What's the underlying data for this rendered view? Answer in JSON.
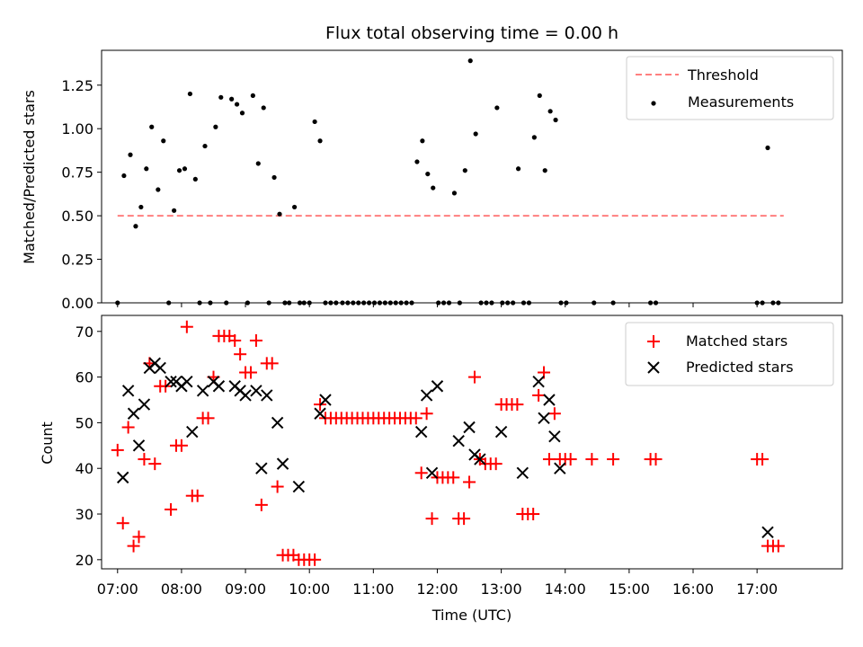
{
  "chart_data": [
    {
      "type": "scatter",
      "title": "Flux total observing time = 0.00 h",
      "ylabel": "Matched/Predicted stars",
      "xlim": [
        "06:45",
        "18:20"
      ],
      "ylim": [
        0,
        1.45
      ],
      "yticks": [
        0.0,
        0.25,
        0.5,
        0.75,
        1.0,
        1.25
      ],
      "ytick_labels": [
        "0.00",
        "0.25",
        "0.50",
        "0.75",
        "1.00",
        "1.25"
      ],
      "x_tick_labels_shown": false,
      "grid": false,
      "legend_position": "top-right",
      "threshold": {
        "name": "Threshold",
        "value": 0.5,
        "x_range": [
          "07:00",
          "17:25"
        ],
        "color": "#ff7f7f",
        "style": "dashed"
      },
      "series": [
        {
          "name": "Measurements",
          "color": "#000000",
          "marker": "dot",
          "points": [
            [
              "07:00",
              0.0
            ],
            [
              "07:06",
              0.73
            ],
            [
              "07:12",
              0.85
            ],
            [
              "07:17",
              0.44
            ],
            [
              "07:22",
              0.55
            ],
            [
              "07:27",
              0.77
            ],
            [
              "07:32",
              1.01
            ],
            [
              "07:38",
              0.65
            ],
            [
              "07:43",
              0.93
            ],
            [
              "07:48",
              0.0
            ],
            [
              "07:53",
              0.53
            ],
            [
              "07:58",
              0.76
            ],
            [
              "08:03",
              0.77
            ],
            [
              "08:08",
              1.2
            ],
            [
              "08:13",
              0.71
            ],
            [
              "08:17",
              0.0
            ],
            [
              "08:22",
              0.9
            ],
            [
              "08:27",
              0.0
            ],
            [
              "08:32",
              1.01
            ],
            [
              "08:37",
              1.18
            ],
            [
              "08:42",
              0.0
            ],
            [
              "08:47",
              1.17
            ],
            [
              "08:52",
              1.14
            ],
            [
              "08:57",
              1.09
            ],
            [
              "09:02",
              0.0
            ],
            [
              "09:07",
              1.19
            ],
            [
              "09:12",
              0.8
            ],
            [
              "09:17",
              1.12
            ],
            [
              "09:22",
              0.0
            ],
            [
              "09:27",
              0.72
            ],
            [
              "09:32",
              0.51
            ],
            [
              "09:37",
              0.0
            ],
            [
              "09:41",
              0.0
            ],
            [
              "09:46",
              0.55
            ],
            [
              "09:51",
              0.0
            ],
            [
              "09:55",
              0.0
            ],
            [
              "10:00",
              0.0
            ],
            [
              "10:05",
              1.04
            ],
            [
              "10:10",
              0.93
            ],
            [
              "10:15",
              0.0
            ],
            [
              "10:20",
              0.0
            ],
            [
              "10:25",
              0.0
            ],
            [
              "10:31",
              0.0
            ],
            [
              "10:36",
              0.0
            ],
            [
              "10:41",
              0.0
            ],
            [
              "10:46",
              0.0
            ],
            [
              "10:51",
              0.0
            ],
            [
              "10:56",
              0.0
            ],
            [
              "11:01",
              0.0
            ],
            [
              "11:06",
              0.0
            ],
            [
              "11:11",
              0.0
            ],
            [
              "11:16",
              0.0
            ],
            [
              "11:21",
              0.0
            ],
            [
              "11:26",
              0.0
            ],
            [
              "11:31",
              0.0
            ],
            [
              "11:36",
              0.0
            ],
            [
              "11:41",
              0.81
            ],
            [
              "11:46",
              0.93
            ],
            [
              "11:51",
              0.74
            ],
            [
              "11:56",
              0.66
            ],
            [
              "12:01",
              0.0
            ],
            [
              "12:06",
              0.0
            ],
            [
              "12:11",
              0.0
            ],
            [
              "12:16",
              0.63
            ],
            [
              "12:21",
              0.0
            ],
            [
              "12:26",
              0.76
            ],
            [
              "12:31",
              1.39
            ],
            [
              "12:36",
              0.97
            ],
            [
              "12:41",
              0.0
            ],
            [
              "12:46",
              0.0
            ],
            [
              "12:51",
              0.0
            ],
            [
              "12:56",
              1.12
            ],
            [
              "13:01",
              0.0
            ],
            [
              "13:06",
              0.0
            ],
            [
              "13:11",
              0.0
            ],
            [
              "13:16",
              0.77
            ],
            [
              "13:21",
              0.0
            ],
            [
              "13:26",
              0.0
            ],
            [
              "13:31",
              0.95
            ],
            [
              "13:36",
              1.19
            ],
            [
              "13:41",
              0.76
            ],
            [
              "13:46",
              1.1
            ],
            [
              "13:51",
              1.05
            ],
            [
              "13:56",
              0.0
            ],
            [
              "14:01",
              0.0
            ],
            [
              "14:27",
              0.0
            ],
            [
              "14:45",
              0.0
            ],
            [
              "15:20",
              0.0
            ],
            [
              "15:25",
              0.0
            ],
            [
              "17:00",
              0.0
            ],
            [
              "17:05",
              0.0
            ],
            [
              "17:10",
              0.89
            ],
            [
              "17:15",
              0.0
            ],
            [
              "17:20",
              0.0
            ]
          ]
        }
      ]
    },
    {
      "type": "scatter",
      "xlabel": "Time (UTC)",
      "ylabel": "Count",
      "xlim": [
        "06:45",
        "18:20"
      ],
      "ylim": [
        18,
        73.5
      ],
      "xticks": [
        "07:00",
        "08:00",
        "09:00",
        "10:00",
        "11:00",
        "12:00",
        "13:00",
        "14:00",
        "15:00",
        "16:00",
        "17:00"
      ],
      "yticks": [
        20,
        30,
        40,
        50,
        60,
        70
      ],
      "grid": false,
      "legend_position": "top-right",
      "series": [
        {
          "name": "Matched stars",
          "color": "#ff0000",
          "marker": "plus",
          "points": [
            [
              "07:00",
              44
            ],
            [
              "07:05",
              28
            ],
            [
              "07:10",
              49
            ],
            [
              "07:15",
              23
            ],
            [
              "07:20",
              25
            ],
            [
              "07:25",
              42
            ],
            [
              "07:30",
              63
            ],
            [
              "07:35",
              41
            ],
            [
              "07:40",
              58
            ],
            [
              "07:45",
              58
            ],
            [
              "07:50",
              31
            ],
            [
              "07:55",
              45
            ],
            [
              "08:00",
              45
            ],
            [
              "08:05",
              71
            ],
            [
              "08:10",
              34
            ],
            [
              "08:15",
              34
            ],
            [
              "08:20",
              51
            ],
            [
              "08:25",
              51
            ],
            [
              "08:30",
              60
            ],
            [
              "08:35",
              69
            ],
            [
              "08:40",
              69
            ],
            [
              "08:45",
              69
            ],
            [
              "08:50",
              68
            ],
            [
              "08:55",
              65
            ],
            [
              "09:00",
              61
            ],
            [
              "09:05",
              61
            ],
            [
              "09:10",
              68
            ],
            [
              "09:15",
              32
            ],
            [
              "09:20",
              63
            ],
            [
              "09:25",
              63
            ],
            [
              "09:30",
              36
            ],
            [
              "09:35",
              21
            ],
            [
              "09:40",
              21
            ],
            [
              "09:45",
              21
            ],
            [
              "09:50",
              20
            ],
            [
              "09:55",
              20
            ],
            [
              "10:00",
              20
            ],
            [
              "10:05",
              20
            ],
            [
              "10:10",
              54
            ],
            [
              "10:15",
              51
            ],
            [
              "10:20",
              51
            ],
            [
              "10:25",
              51
            ],
            [
              "10:30",
              51
            ],
            [
              "10:35",
              51
            ],
            [
              "10:40",
              51
            ],
            [
              "10:45",
              51
            ],
            [
              "10:50",
              51
            ],
            [
              "10:55",
              51
            ],
            [
              "11:00",
              51
            ],
            [
              "11:05",
              51
            ],
            [
              "11:10",
              51
            ],
            [
              "11:15",
              51
            ],
            [
              "11:20",
              51
            ],
            [
              "11:25",
              51
            ],
            [
              "11:30",
              51
            ],
            [
              "11:35",
              51
            ],
            [
              "11:40",
              51
            ],
            [
              "11:45",
              39
            ],
            [
              "11:50",
              52
            ],
            [
              "11:55",
              29
            ],
            [
              "12:00",
              38
            ],
            [
              "12:05",
              38
            ],
            [
              "12:10",
              38
            ],
            [
              "12:15",
              38
            ],
            [
              "12:20",
              29
            ],
            [
              "12:25",
              29
            ],
            [
              "12:30",
              37
            ],
            [
              "12:35",
              60
            ],
            [
              "12:40",
              42
            ],
            [
              "12:45",
              41
            ],
            [
              "12:50",
              41
            ],
            [
              "12:55",
              41
            ],
            [
              "13:00",
              54
            ],
            [
              "13:05",
              54
            ],
            [
              "13:10",
              54
            ],
            [
              "13:15",
              54
            ],
            [
              "13:20",
              30
            ],
            [
              "13:25",
              30
            ],
            [
              "13:30",
              30
            ],
            [
              "13:35",
              56
            ],
            [
              "13:40",
              61
            ],
            [
              "13:45",
              42
            ],
            [
              "13:50",
              52
            ],
            [
              "13:55",
              42
            ],
            [
              "14:00",
              42
            ],
            [
              "14:05",
              42
            ],
            [
              "14:25",
              42
            ],
            [
              "14:45",
              42
            ],
            [
              "15:20",
              42
            ],
            [
              "15:25",
              42
            ],
            [
              "17:00",
              42
            ],
            [
              "17:05",
              42
            ],
            [
              "17:10",
              23
            ],
            [
              "17:15",
              23
            ],
            [
              "17:20",
              23
            ]
          ]
        },
        {
          "name": "Predicted stars",
          "color": "#000000",
          "marker": "x",
          "points": [
            [
              "07:05",
              38
            ],
            [
              "07:10",
              57
            ],
            [
              "07:15",
              52
            ],
            [
              "07:20",
              45
            ],
            [
              "07:25",
              54
            ],
            [
              "07:30",
              62
            ],
            [
              "07:35",
              63
            ],
            [
              "07:40",
              62
            ],
            [
              "07:50",
              59
            ],
            [
              "07:55",
              59
            ],
            [
              "08:00",
              58
            ],
            [
              "08:05",
              59
            ],
            [
              "08:10",
              48
            ],
            [
              "08:20",
              57
            ],
            [
              "08:30",
              59
            ],
            [
              "08:35",
              58
            ],
            [
              "08:50",
              58
            ],
            [
              "08:55",
              57
            ],
            [
              "09:00",
              56
            ],
            [
              "09:10",
              57
            ],
            [
              "09:15",
              40
            ],
            [
              "09:20",
              56
            ],
            [
              "09:30",
              50
            ],
            [
              "09:35",
              41
            ],
            [
              "09:50",
              36
            ],
            [
              "10:10",
              52
            ],
            [
              "10:15",
              55
            ],
            [
              "11:45",
              48
            ],
            [
              "11:50",
              56
            ],
            [
              "11:55",
              39
            ],
            [
              "12:00",
              58
            ],
            [
              "12:20",
              46
            ],
            [
              "12:30",
              49
            ],
            [
              "12:35",
              43
            ],
            [
              "12:40",
              42
            ],
            [
              "13:00",
              48
            ],
            [
              "13:20",
              39
            ],
            [
              "13:35",
              59
            ],
            [
              "13:40",
              51
            ],
            [
              "13:45",
              55
            ],
            [
              "13:50",
              47
            ],
            [
              "13:55",
              40
            ],
            [
              "17:10",
              26
            ]
          ]
        }
      ]
    }
  ]
}
